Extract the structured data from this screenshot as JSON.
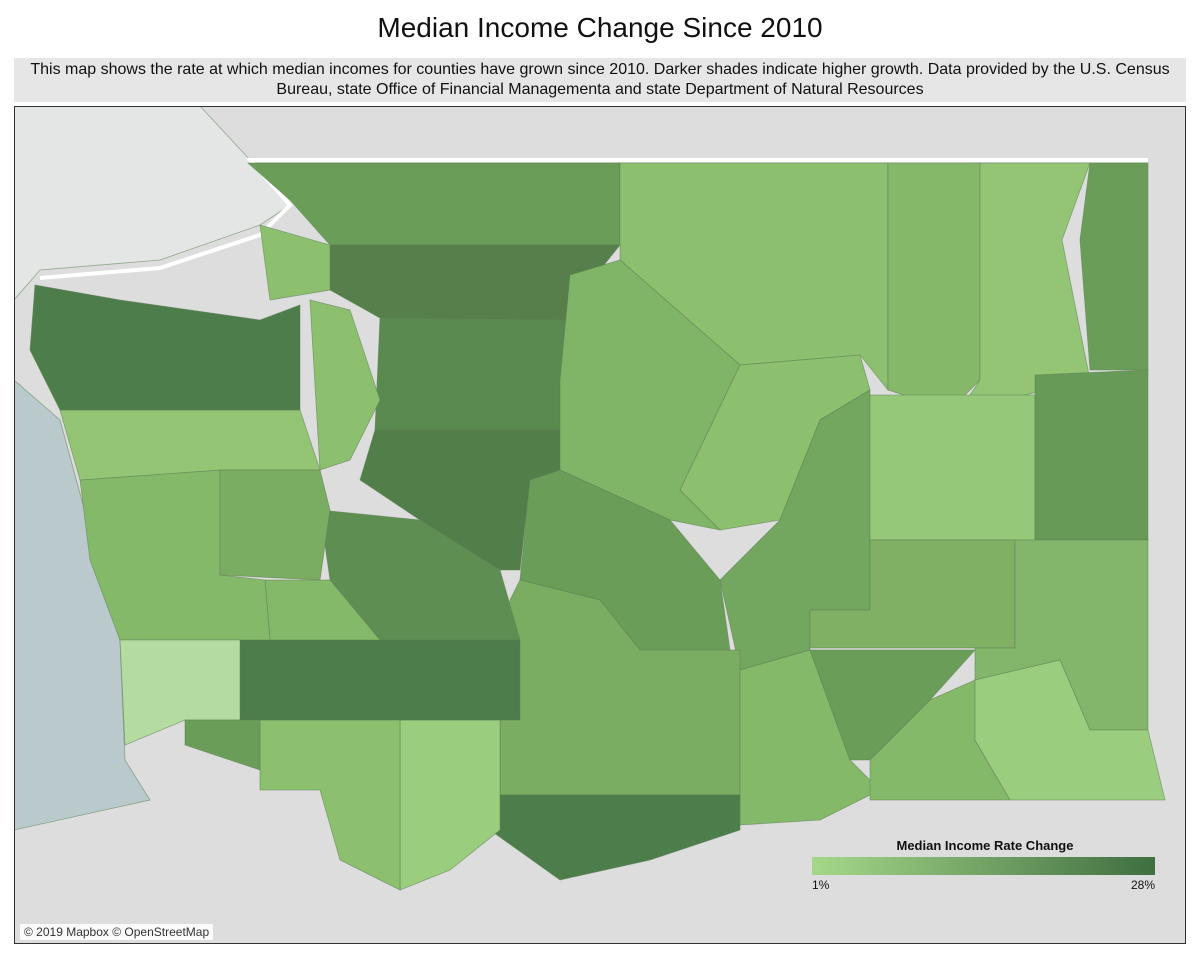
{
  "header": {
    "title": "Median Income Change Since 2010",
    "subtitle": "This map shows the rate at which median incomes for counties have grown since 2010. Darker shades indicate higher growth. Data provided by the U.S. Census Bureau, state Office of Financial Managementa and state Department of Natural Resources"
  },
  "legend": {
    "title": "Median Income Rate Change",
    "min_label": "1%",
    "max_label": "28%"
  },
  "attribution": "© 2019 Mapbox © OpenStreetMap"
}
